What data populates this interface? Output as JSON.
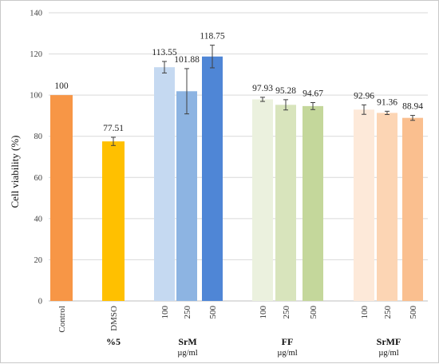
{
  "chart_data": {
    "type": "bar",
    "ylabel": "Cell viability (%)",
    "ylim": [
      0,
      140
    ],
    "yticks": [
      0,
      20,
      40,
      60,
      80,
      100,
      120,
      140
    ],
    "grid": true,
    "bars": [
      {
        "id": "control",
        "category": "Control",
        "value": 100,
        "label": "100",
        "color": "#F79646",
        "err": null
      },
      {
        "id": "dmso",
        "category": "DMSO",
        "value": 77.51,
        "label": "77.51",
        "color": "#FFC000",
        "err": 2.0
      },
      {
        "id": "srm-100",
        "category": "100",
        "value": 113.55,
        "label": "113.55",
        "color": "#C5D9F1",
        "err": 2.8
      },
      {
        "id": "srm-250",
        "category": "250",
        "value": 101.88,
        "label": "101.88",
        "color": "#8DB4E2",
        "err": 11.0
      },
      {
        "id": "srm-500",
        "category": "500",
        "value": 118.75,
        "label": "118.75",
        "color": "#4F86D6",
        "err": 5.5
      },
      {
        "id": "ff-100",
        "category": "100",
        "value": 97.93,
        "label": "97.93",
        "color": "#EBF1DE",
        "err": 1.0
      },
      {
        "id": "ff-250",
        "category": "250",
        "value": 95.28,
        "label": "95.28",
        "color": "#D8E4BC",
        "err": 2.5
      },
      {
        "id": "ff-500",
        "category": "500",
        "value": 94.67,
        "label": "94.67",
        "color": "#C4D79B",
        "err": 1.7
      },
      {
        "id": "srmf-100",
        "category": "100",
        "value": 92.96,
        "label": "92.96",
        "color": "#FDE9D9",
        "err": 2.3
      },
      {
        "id": "srmf-250",
        "category": "250",
        "value": 91.36,
        "label": "91.36",
        "color": "#FCD5B4",
        "err": 0.8
      },
      {
        "id": "srmf-500",
        "category": "500",
        "value": 88.94,
        "label": "88.94",
        "color": "#FABF8F",
        "err": 1.2
      }
    ],
    "groups": [
      {
        "id": "dmso",
        "name": "%5",
        "unit": ""
      },
      {
        "id": "srm",
        "name": "SrM",
        "unit": "µg/ml"
      },
      {
        "id": "ff",
        "name": "FF",
        "unit": "µg/ml"
      },
      {
        "id": "srmf",
        "name": "SrMF",
        "unit": "µg/ml"
      }
    ]
  }
}
